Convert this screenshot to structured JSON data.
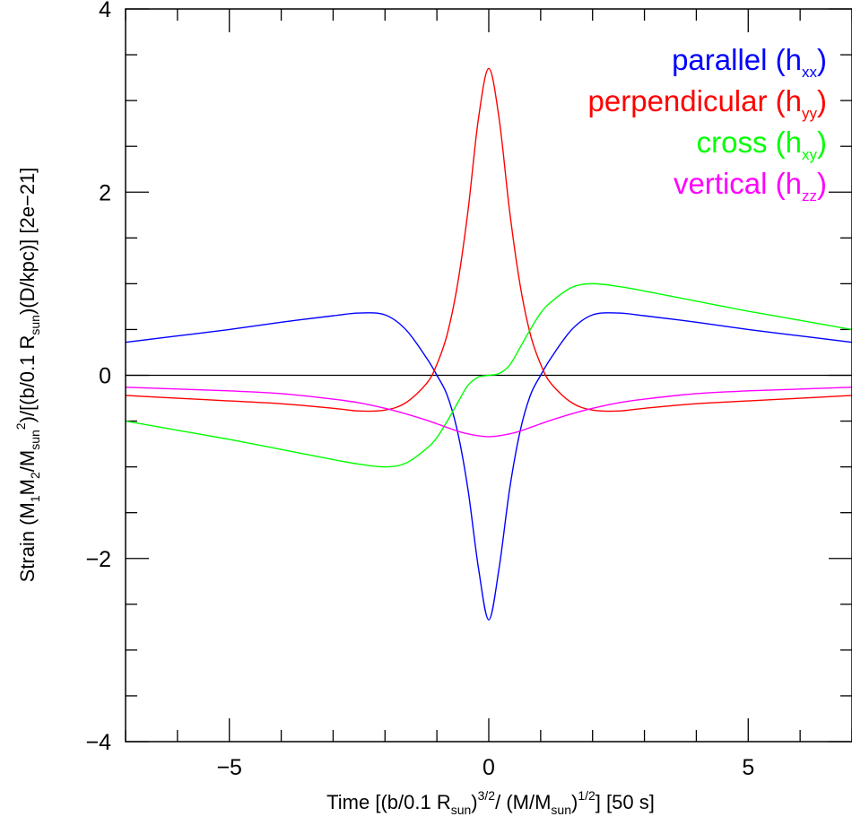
{
  "chart_data": {
    "type": "line",
    "xlim": [
      -7,
      7
    ],
    "ylim": [
      -4,
      4
    ],
    "x_ticks": [
      -5,
      0,
      5
    ],
    "x_tick_labels": [
      "−5",
      "0",
      "5"
    ],
    "y_ticks": [
      -4,
      -2,
      0,
      2,
      4
    ],
    "y_tick_labels": [
      "−4",
      "−2",
      "0",
      "2",
      "4"
    ],
    "xlabel": {
      "parts": [
        {
          "t": "Time [(b/0.1 R",
          "s": "n"
        },
        {
          "t": "sun",
          "s": "sub"
        },
        {
          "t": ")",
          "s": "n"
        },
        {
          "t": "3/2",
          "s": "sup"
        },
        {
          "t": "/ (M/M",
          "s": "n"
        },
        {
          "t": "sun",
          "s": "sub"
        },
        {
          "t": ")",
          "s": "n"
        },
        {
          "t": "1/2",
          "s": "sup"
        },
        {
          "t": "] [50 s]",
          "s": "n"
        }
      ]
    },
    "ylabel": {
      "parts": [
        {
          "t": "Strain (M",
          "s": "n"
        },
        {
          "t": "1",
          "s": "sub"
        },
        {
          "t": "M",
          "s": "n"
        },
        {
          "t": "2",
          "s": "sub"
        },
        {
          "t": "/M",
          "s": "n"
        },
        {
          "t": "sun",
          "s": "sub"
        },
        {
          "t": "2",
          "s": "sup"
        },
        {
          "t": ")/[(b/0.1 R",
          "s": "n"
        },
        {
          "t": "sun",
          "s": "sub"
        },
        {
          "t": ")(D/kpc)] [2e−21]",
          "s": "n"
        }
      ]
    },
    "zero_line": true,
    "grid": false,
    "legend_position": "top-right",
    "series": [
      {
        "name": "parallel",
        "sub": "xx",
        "color": "#0000ff",
        "x": [
          -7,
          -6,
          -5,
          -4,
          -3,
          -2.5,
          -2,
          -1.6,
          -1.2,
          -1,
          -0.8,
          -0.6,
          -0.4,
          -0.2,
          0,
          0.2,
          0.4,
          0.6,
          0.8,
          1,
          1.2,
          1.6,
          2,
          2.5,
          3,
          4,
          5,
          6,
          7
        ],
        "values": [
          0.36,
          0.43,
          0.5,
          0.58,
          0.65,
          0.68,
          0.66,
          0.5,
          0.19,
          0,
          -0.22,
          -0.62,
          -1.25,
          -2.1,
          -2.67,
          -2.1,
          -1.25,
          -0.62,
          -0.22,
          0,
          0.19,
          0.5,
          0.66,
          0.68,
          0.65,
          0.58,
          0.5,
          0.43,
          0.36
        ]
      },
      {
        "name": "perpendicular",
        "sub": "yy",
        "color": "#ff0000",
        "x": [
          -7,
          -6,
          -5,
          -4,
          -3,
          -2.5,
          -2,
          -1.6,
          -1.2,
          -1,
          -0.8,
          -0.6,
          -0.4,
          -0.2,
          0,
          0.2,
          0.4,
          0.6,
          0.8,
          1,
          1.2,
          1.6,
          2,
          2.5,
          3,
          4,
          5,
          6,
          7
        ],
        "values": [
          -0.22,
          -0.25,
          -0.28,
          -0.31,
          -0.36,
          -0.39,
          -0.38,
          -0.3,
          -0.09,
          0.12,
          0.45,
          1.0,
          1.8,
          2.8,
          3.35,
          2.8,
          1.8,
          1.0,
          0.45,
          0.12,
          -0.09,
          -0.3,
          -0.38,
          -0.39,
          -0.36,
          -0.31,
          -0.28,
          -0.25,
          -0.22
        ]
      },
      {
        "name": "cross",
        "sub": "xy",
        "color": "#00ff00",
        "x": [
          -7,
          -6,
          -5,
          -4,
          -3,
          -2.5,
          -2,
          -1.6,
          -1.2,
          -1,
          -0.8,
          -0.6,
          -0.4,
          -0.2,
          0,
          0.2,
          0.4,
          0.6,
          0.8,
          1,
          1.2,
          1.6,
          2,
          2.5,
          3,
          4,
          5,
          6,
          7
        ],
        "values": [
          -0.5,
          -0.6,
          -0.7,
          -0.81,
          -0.92,
          -0.97,
          -1.0,
          -0.96,
          -0.8,
          -0.68,
          -0.5,
          -0.3,
          -0.11,
          -0.02,
          0,
          0.02,
          0.11,
          0.3,
          0.5,
          0.68,
          0.8,
          0.96,
          1.0,
          0.97,
          0.92,
          0.81,
          0.7,
          0.6,
          0.5
        ]
      },
      {
        "name": "vertical",
        "sub": "zz",
        "color": "#ff00ff",
        "x": [
          -7,
          -6,
          -5,
          -4,
          -3,
          -2.5,
          -2,
          -1.6,
          -1.2,
          -1,
          -0.8,
          -0.6,
          -0.4,
          -0.2,
          0,
          0.2,
          0.4,
          0.6,
          0.8,
          1,
          1.2,
          1.6,
          2,
          2.5,
          3,
          4,
          5,
          6,
          7
        ],
        "values": [
          -0.13,
          -0.15,
          -0.17,
          -0.2,
          -0.26,
          -0.3,
          -0.36,
          -0.42,
          -0.49,
          -0.53,
          -0.57,
          -0.61,
          -0.64,
          -0.66,
          -0.67,
          -0.66,
          -0.64,
          -0.61,
          -0.57,
          -0.53,
          -0.49,
          -0.42,
          -0.36,
          -0.3,
          -0.26,
          -0.2,
          -0.17,
          -0.15,
          -0.13
        ]
      }
    ]
  }
}
